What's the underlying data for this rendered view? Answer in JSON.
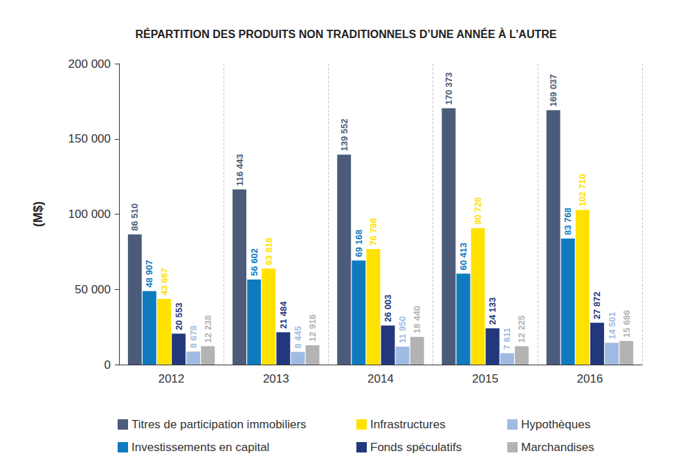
{
  "chart_data": {
    "type": "bar",
    "title": "RÉPARTITION DES PRODUITS NON TRADITIONNELS D’UNE ANNÉE À L’AUTRE",
    "y_label": "(M$)",
    "categories": [
      "2012",
      "2013",
      "2014",
      "2015",
      "2016"
    ],
    "series": [
      {
        "name": "Titres de participation immobiliers",
        "color": "#4b5b79",
        "values": [
          86510,
          116443,
          139552,
          170373,
          169037
        ],
        "value_labels": [
          "86 510",
          "116 443",
          "139 552",
          "170 373",
          "169 037"
        ]
      },
      {
        "name": "Investissements en capital",
        "color": "#0f7bbf",
        "values": [
          48907,
          56602,
          69168,
          60413,
          83768
        ],
        "value_labels": [
          "48 907",
          "56 602",
          "69 168",
          "60 413",
          "83 768"
        ]
      },
      {
        "name": "Infrastructures",
        "color": "#ffe100",
        "values": [
          43667,
          63818,
          76798,
          90726,
          102710
        ],
        "value_labels": [
          "43 667",
          "63 818",
          "76 798",
          "90 726",
          "102 710"
        ]
      },
      {
        "name": "Fonds spéculatifs",
        "color": "#22377c",
        "values": [
          20553,
          21484,
          26003,
          24133,
          27872
        ],
        "value_labels": [
          "20 553",
          "21 484",
          "26 003",
          "24 133",
          "27 872"
        ]
      },
      {
        "name": "Hypothèques",
        "color": "#9fbbe2",
        "values": [
          8678,
          8445,
          11950,
          7611,
          14501
        ],
        "value_labels": [
          "8 678",
          "8 445",
          "11 950",
          "7 611",
          "14 501"
        ]
      },
      {
        "name": "Marchandises",
        "color": "#b3b3b3",
        "values": [
          12238,
          12916,
          18440,
          12225,
          15686
        ],
        "value_labels": [
          "12 238",
          "12 916",
          "18 440",
          "12 225",
          "15 686"
        ]
      }
    ],
    "ylim": [
      0,
      200000
    ],
    "yticks": [
      0,
      {
        "value": 50000,
        "label": "50 000"
      },
      {
        "value": 100000,
        "label": "100 000"
      },
      {
        "value": 150000,
        "label": "150 000"
      },
      {
        "value": 200000,
        "label": "200 000"
      }
    ],
    "grid": false,
    "legend": "bottom",
    "data_labels": true
  }
}
